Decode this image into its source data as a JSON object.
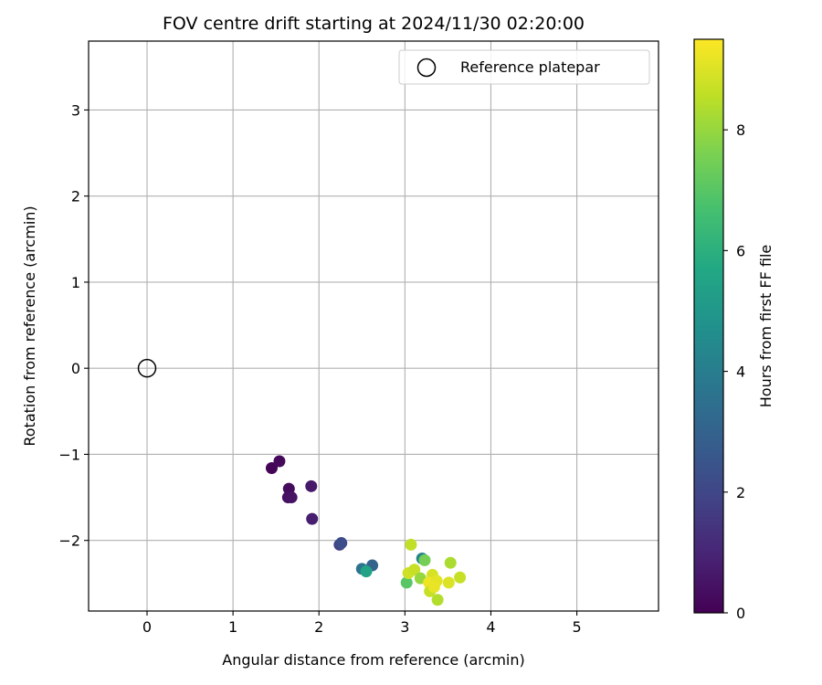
{
  "chart_data": {
    "type": "scatter",
    "title": "FOV centre drift starting at 2024/11/30 02:20:00",
    "xlabel": "Angular distance from reference (arcmin)",
    "ylabel": "Rotation from reference (arcmin)",
    "xlim": [
      -0.68,
      5.95
    ],
    "ylim": [
      -2.82,
      3.8
    ],
    "xticks": [
      "0",
      "1",
      "2",
      "3",
      "4",
      "5"
    ],
    "xtick_values": [
      0,
      1,
      2,
      3,
      4,
      5
    ],
    "yticks": [
      "−2",
      "−1",
      "0",
      "1",
      "2",
      "3"
    ],
    "ytick_values": [
      -2,
      -1,
      0,
      1,
      2,
      3
    ],
    "grid": true,
    "legend": {
      "label": "Reference platepar",
      "placement": "upper right"
    },
    "reference_point": {
      "x": 0,
      "y": 0
    },
    "colorbar": {
      "label": "Hours from first FF file",
      "colormap": "viridis",
      "range": [
        0,
        9.5
      ],
      "ticks": [
        "0",
        "2",
        "4",
        "6",
        "8"
      ],
      "tick_values": [
        0,
        2,
        4,
        6,
        8
      ]
    },
    "points": [
      {
        "x": 1.45,
        "y": -1.16,
        "c": 0.1
      },
      {
        "x": 1.54,
        "y": -1.08,
        "c": 0.2
      },
      {
        "x": 1.65,
        "y": -1.4,
        "c": 0.3
      },
      {
        "x": 1.64,
        "y": -1.5,
        "c": 0.4
      },
      {
        "x": 1.68,
        "y": -1.5,
        "c": 0.5
      },
      {
        "x": 1.91,
        "y": -1.37,
        "c": 0.6
      },
      {
        "x": 1.92,
        "y": -1.75,
        "c": 0.8
      },
      {
        "x": 2.24,
        "y": -2.05,
        "c": 1.8
      },
      {
        "x": 2.26,
        "y": -2.03,
        "c": 2.2
      },
      {
        "x": 2.62,
        "y": -2.29,
        "c": 3.0
      },
      {
        "x": 2.5,
        "y": -2.33,
        "c": 3.6
      },
      {
        "x": 2.55,
        "y": -2.36,
        "c": 5.5
      },
      {
        "x": 3.2,
        "y": -2.21,
        "c": 4.3
      },
      {
        "x": 3.23,
        "y": -2.23,
        "c": 7.5
      },
      {
        "x": 3.02,
        "y": -2.49,
        "c": 7.0
      },
      {
        "x": 3.07,
        "y": -2.05,
        "c": 8.6
      },
      {
        "x": 3.04,
        "y": -2.38,
        "c": 8.8
      },
      {
        "x": 3.11,
        "y": -2.34,
        "c": 8.7
      },
      {
        "x": 3.18,
        "y": -2.44,
        "c": 8.0
      },
      {
        "x": 3.32,
        "y": -2.4,
        "c": 8.9
      },
      {
        "x": 3.28,
        "y": -2.49,
        "c": 9.3
      },
      {
        "x": 3.37,
        "y": -2.47,
        "c": 9.1
      },
      {
        "x": 3.29,
        "y": -2.59,
        "c": 8.7
      },
      {
        "x": 3.34,
        "y": -2.54,
        "c": 9.2
      },
      {
        "x": 3.38,
        "y": -2.69,
        "c": 8.4
      },
      {
        "x": 3.51,
        "y": -2.49,
        "c": 9.0
      },
      {
        "x": 3.53,
        "y": -2.26,
        "c": 8.3
      },
      {
        "x": 3.64,
        "y": -2.43,
        "c": 8.7
      }
    ]
  }
}
